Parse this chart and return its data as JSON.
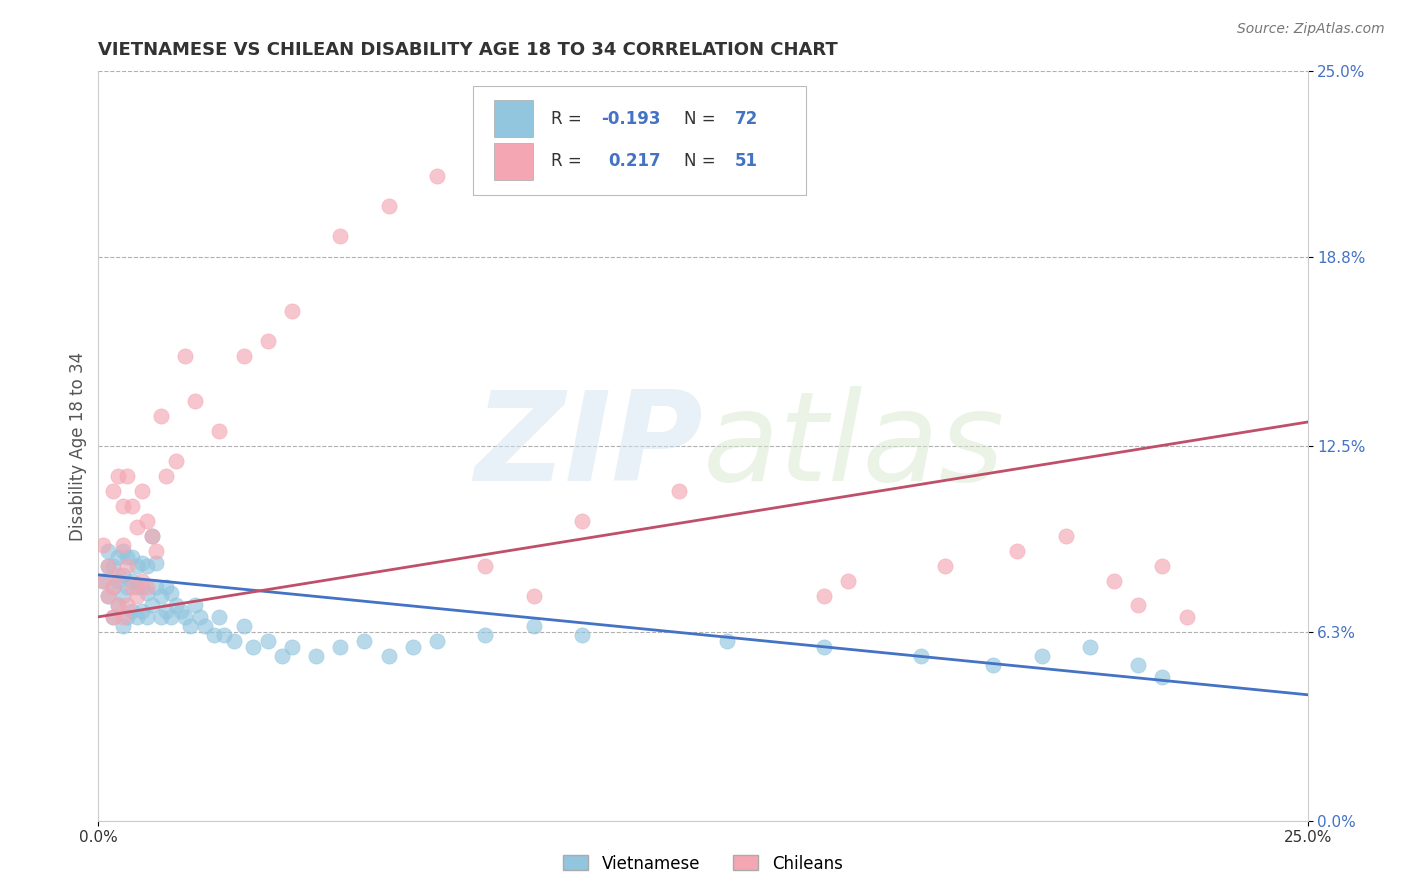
{
  "title": "VIETNAMESE VS CHILEAN DISABILITY AGE 18 TO 34 CORRELATION CHART",
  "source": "Source: ZipAtlas.com",
  "ylabel": "Disability Age 18 to 34",
  "xmin": 0.0,
  "xmax": 0.25,
  "ymin": 0.0,
  "ymax": 0.25,
  "ytick_labels": [
    "0.0%",
    "6.3%",
    "12.5%",
    "18.8%",
    "25.0%"
  ],
  "ytick_values": [
    0.0,
    0.063,
    0.125,
    0.188,
    0.25
  ],
  "xtick_labels": [
    "0.0%",
    "25.0%"
  ],
  "xtick_values": [
    0.0,
    0.25
  ],
  "vietnamese_color": "#92c5de",
  "chilean_color": "#f4a6b2",
  "vietnamese_line_color": "#4472c4",
  "chilean_line_color": "#c0506a",
  "r_vietnamese": -0.193,
  "n_vietnamese": 72,
  "r_chilean": 0.217,
  "n_chilean": 51,
  "background_color": "#ffffff",
  "grid_color": "#b0b0b0",
  "viet_line_y0": 0.082,
  "viet_line_y1": 0.042,
  "chile_line_y0": 0.068,
  "chile_line_y1": 0.133,
  "vietnamese_x": [
    0.001,
    0.002,
    0.002,
    0.002,
    0.003,
    0.003,
    0.003,
    0.004,
    0.004,
    0.004,
    0.005,
    0.005,
    0.005,
    0.005,
    0.006,
    0.006,
    0.006,
    0.007,
    0.007,
    0.007,
    0.008,
    0.008,
    0.008,
    0.009,
    0.009,
    0.009,
    0.01,
    0.01,
    0.01,
    0.011,
    0.011,
    0.012,
    0.012,
    0.013,
    0.013,
    0.014,
    0.014,
    0.015,
    0.015,
    0.016,
    0.017,
    0.018,
    0.019,
    0.02,
    0.021,
    0.022,
    0.024,
    0.025,
    0.026,
    0.028,
    0.03,
    0.032,
    0.035,
    0.038,
    0.04,
    0.045,
    0.05,
    0.055,
    0.06,
    0.065,
    0.07,
    0.08,
    0.09,
    0.1,
    0.13,
    0.15,
    0.17,
    0.185,
    0.195,
    0.205,
    0.215,
    0.22
  ],
  "vietnamese_y": [
    0.08,
    0.075,
    0.085,
    0.09,
    0.068,
    0.078,
    0.085,
    0.072,
    0.08,
    0.088,
    0.065,
    0.075,
    0.082,
    0.09,
    0.068,
    0.078,
    0.088,
    0.07,
    0.08,
    0.088,
    0.068,
    0.078,
    0.085,
    0.07,
    0.078,
    0.086,
    0.068,
    0.076,
    0.085,
    0.095,
    0.072,
    0.078,
    0.086,
    0.068,
    0.075,
    0.07,
    0.078,
    0.068,
    0.076,
    0.072,
    0.07,
    0.068,
    0.065,
    0.072,
    0.068,
    0.065,
    0.062,
    0.068,
    0.062,
    0.06,
    0.065,
    0.058,
    0.06,
    0.055,
    0.058,
    0.055,
    0.058,
    0.06,
    0.055,
    0.058,
    0.06,
    0.062,
    0.065,
    0.062,
    0.06,
    0.058,
    0.055,
    0.052,
    0.055,
    0.058,
    0.052,
    0.048
  ],
  "chilean_x": [
    0.001,
    0.001,
    0.002,
    0.002,
    0.003,
    0.003,
    0.003,
    0.004,
    0.004,
    0.004,
    0.005,
    0.005,
    0.005,
    0.006,
    0.006,
    0.006,
    0.007,
    0.007,
    0.008,
    0.008,
    0.009,
    0.009,
    0.01,
    0.01,
    0.011,
    0.012,
    0.013,
    0.014,
    0.016,
    0.018,
    0.02,
    0.025,
    0.03,
    0.035,
    0.04,
    0.05,
    0.06,
    0.07,
    0.08,
    0.09,
    0.1,
    0.12,
    0.15,
    0.155,
    0.175,
    0.19,
    0.2,
    0.21,
    0.215,
    0.22,
    0.225
  ],
  "chilean_y": [
    0.08,
    0.092,
    0.075,
    0.085,
    0.068,
    0.078,
    0.11,
    0.072,
    0.082,
    0.115,
    0.068,
    0.092,
    0.105,
    0.072,
    0.085,
    0.115,
    0.078,
    0.105,
    0.075,
    0.098,
    0.08,
    0.11,
    0.078,
    0.1,
    0.095,
    0.09,
    0.135,
    0.115,
    0.12,
    0.155,
    0.14,
    0.13,
    0.155,
    0.16,
    0.17,
    0.195,
    0.205,
    0.215,
    0.085,
    0.075,
    0.1,
    0.11,
    0.075,
    0.08,
    0.085,
    0.09,
    0.095,
    0.08,
    0.072,
    0.085,
    0.068
  ]
}
